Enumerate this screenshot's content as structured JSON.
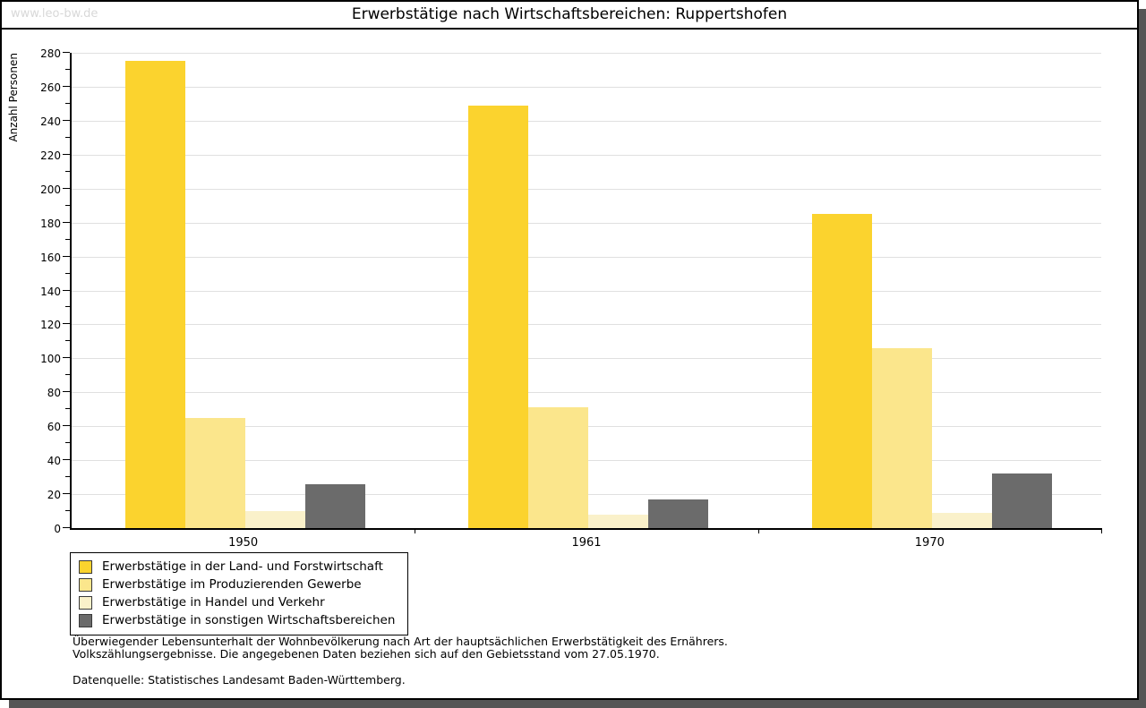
{
  "window": {
    "watermark": "www.leo-bw.de"
  },
  "header": {
    "title": "Erwerbstätige nach Wirtschaftsbereichen: Ruppertshofen"
  },
  "chart_data": {
    "type": "bar",
    "title": "Erwerbstätige nach Wirtschaftsbereichen: Ruppertshofen",
    "xlabel": "",
    "ylabel": "Anzahl Personen",
    "categories": [
      "1950",
      "1961",
      "1970"
    ],
    "series": [
      {
        "name": "Erwerbstätige in der Land- und Forstwirtschaft",
        "color": "#FBD32E",
        "values": [
          275,
          249,
          185
        ]
      },
      {
        "name": "Erwerbstätige im Produzierenden Gewerbe",
        "color": "#FBE68C",
        "values": [
          65,
          71,
          106
        ]
      },
      {
        "name": "Erwerbstätige in Handel und Verkehr",
        "color": "#FAF1CA",
        "values": [
          10,
          8,
          9
        ]
      },
      {
        "name": "Erwerbstätige in sonstigen Wirtschaftsbereichen",
        "color": "#6B6B6B",
        "values": [
          26,
          17,
          32
        ]
      }
    ],
    "ylim": [
      0,
      280
    ],
    "ytick_step": 20,
    "minor_tick_step": 10,
    "grid": true,
    "legend_position": "bottom-left"
  },
  "colors": {
    "gridline": "#E0E0E0",
    "axis": "#000000",
    "watermark": "#D8D8D8",
    "shadow": "#555555"
  },
  "footer": {
    "note_line1": "Überwiegender Lebensunterhalt der Wohnbevölkerung nach Art der hauptsächlichen Erwerbstätigkeit des Ernährers.",
    "note_line2": "Volkszählungsergebnisse. Die angegebenen Daten beziehen sich auf den Gebietsstand vom 27.05.1970.",
    "source": "Datenquelle: Statistisches Landesamt Baden-Württemberg."
  }
}
